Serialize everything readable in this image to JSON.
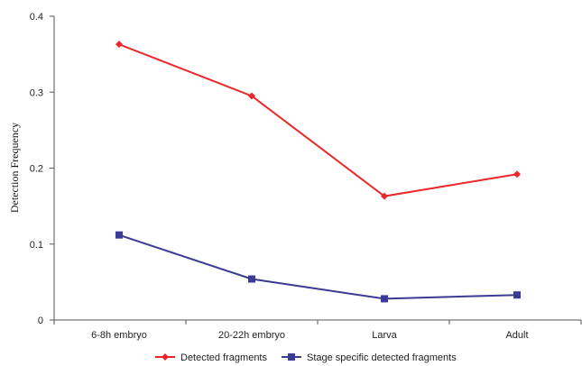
{
  "chart_data": {
    "type": "line",
    "title": "",
    "xlabel": "",
    "ylabel": "Detection Frequency",
    "categories": [
      "6-8h embryo",
      "20-22h embryo",
      "Larva",
      "Adult"
    ],
    "ylim": [
      0,
      0.4
    ],
    "yticks": [
      0,
      0.1,
      0.2,
      0.3,
      0.4
    ],
    "ytick_labels": [
      "0",
      "0.1",
      "0.2",
      "0.3",
      "0.4"
    ],
    "grid": false,
    "legend_position": "bottom",
    "series": [
      {
        "name": "Detected fragments",
        "values": [
          0.363,
          0.295,
          0.163,
          0.192
        ],
        "color": "#e8282b",
        "marker": "diamond"
      },
      {
        "name": "Stage specific detected fragments",
        "values": [
          0.112,
          0.054,
          0.028,
          0.033
        ],
        "color": "#3b3a97",
        "marker": "square"
      }
    ]
  }
}
